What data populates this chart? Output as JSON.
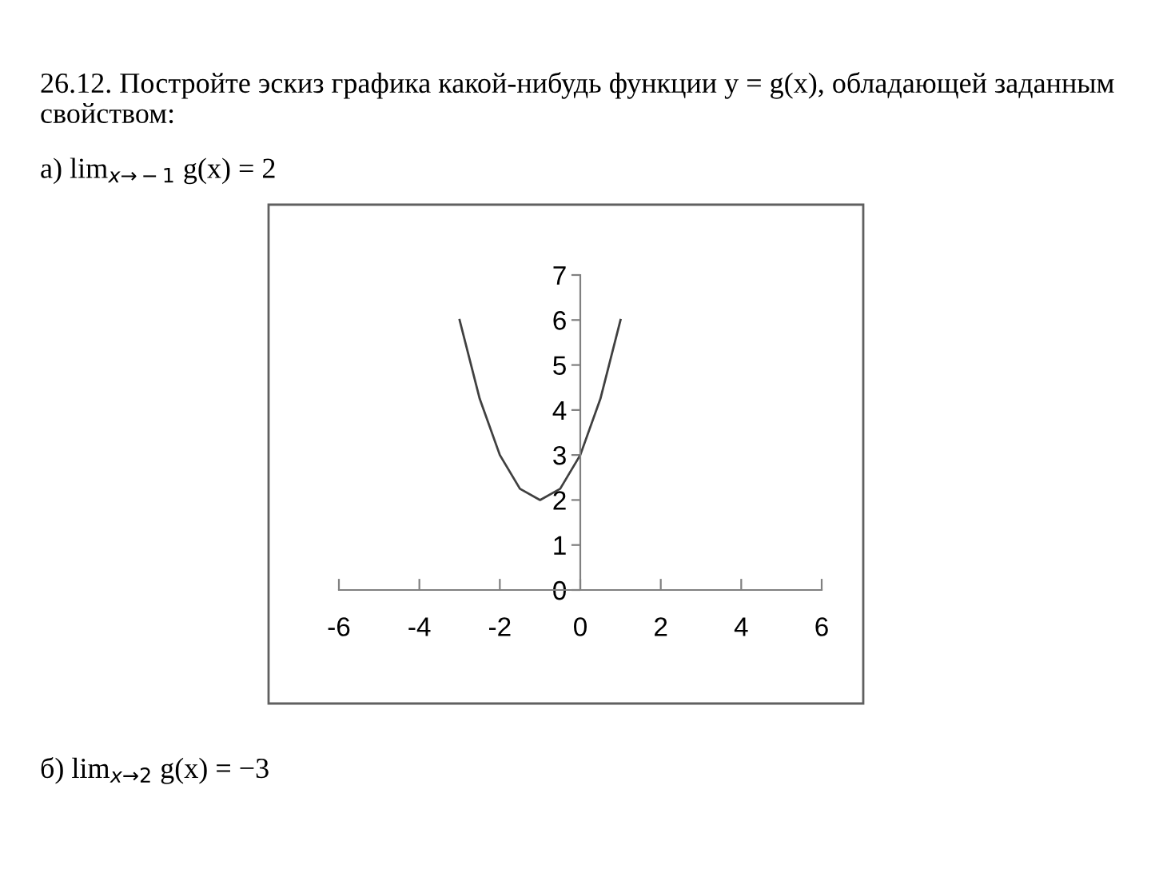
{
  "chart_data": {
    "type": "line",
    "title": "26.12. Постройте эскиз графика какой-нибудь функции y = g(x), обладающей заданным свойством:",
    "annotations": [
      "а) lim$_{x→−1}$ g(x) = 2",
      "б) lim$_{x→2}$ g(x) = −3"
    ],
    "x": [
      -3,
      -2.5,
      -2,
      -1.5,
      -1,
      -0.5,
      0,
      0.5,
      1
    ],
    "series": [
      {
        "color": "#404040",
        "values": [
          6,
          4.25,
          3,
          2.25,
          2,
          2.25,
          3,
          4.25,
          6
        ]
      }
    ],
    "xlim": [
      -6,
      6
    ],
    "xticks": [
      -6,
      -4,
      -2,
      0,
      2,
      4,
      6
    ],
    "ylim": [
      0,
      7
    ],
    "yticks": [
      0,
      1,
      2,
      3,
      4,
      5,
      6,
      7
    ],
    "grid": false,
    "legend": false,
    "marker": "none",
    "line_style": "solid"
  }
}
